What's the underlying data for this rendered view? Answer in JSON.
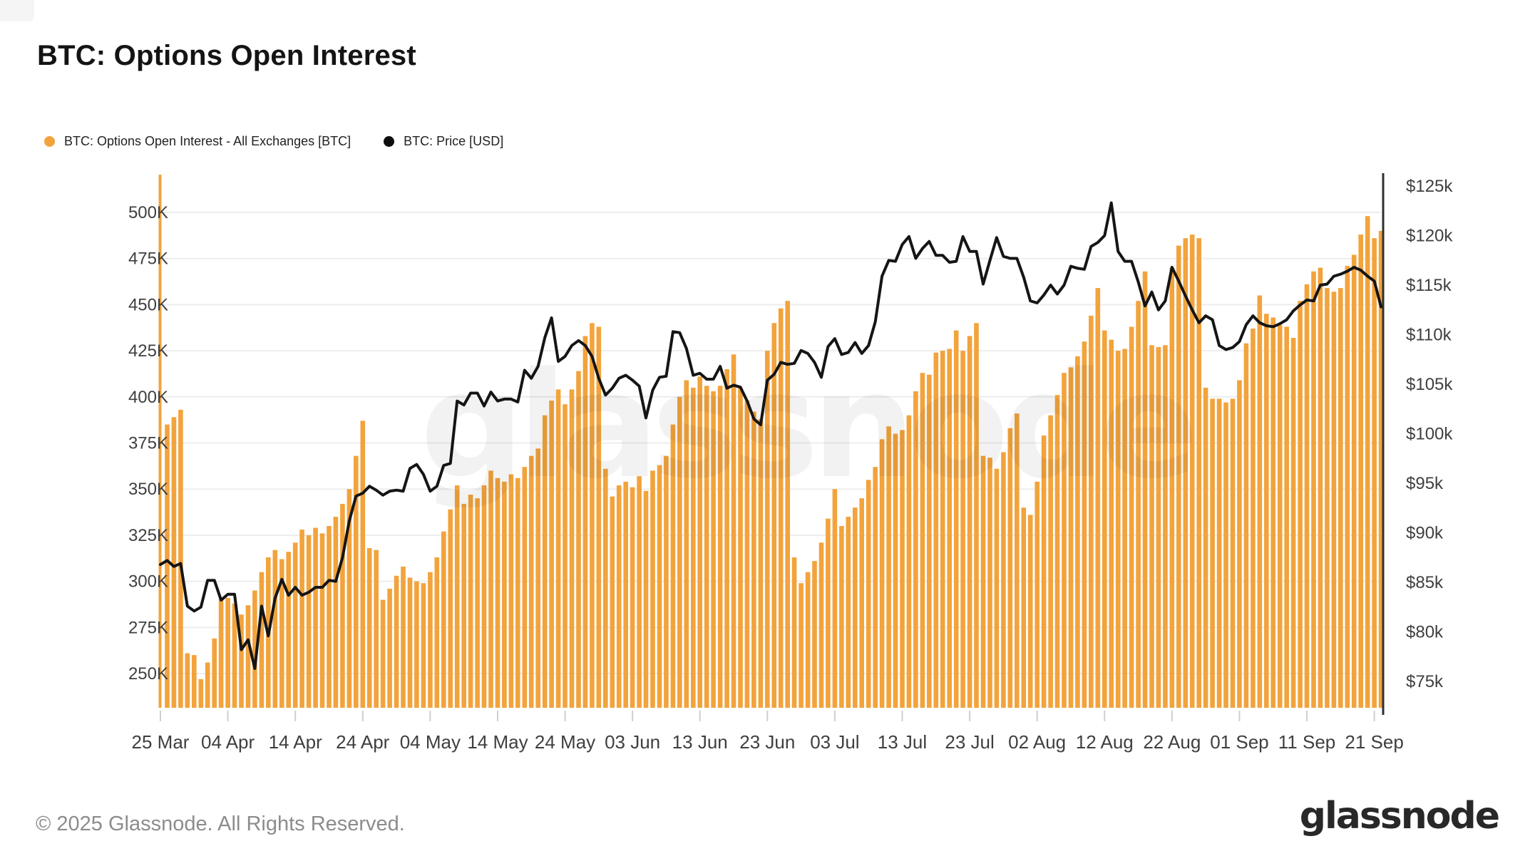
{
  "header": {
    "title": "BTC: Options Open Interest"
  },
  "legend": [
    {
      "label": "BTC: Options Open Interest - All Exchanges [BTC]",
      "color": "#F2A33C",
      "marker": "dot-icon"
    },
    {
      "label": "BTC: Price [USD]",
      "color": "#0E0E0E",
      "marker": "dot-icon"
    }
  ],
  "watermark": "glassnode",
  "footer": {
    "copyright": "© 2025 Glassnode. All Rights Reserved.",
    "logo_text": "glassnode"
  },
  "colors": {
    "bar": "#F2A33C",
    "price_line": "#151515",
    "gridline": "#ededed",
    "axis_text": "#3f3f3f",
    "tick_mark": "#cfcfcf",
    "right_spine": "#2f2f2f",
    "watermark": "rgba(0,0,0,0.05)"
  },
  "chart_data": {
    "type": [
      "bar",
      "line"
    ],
    "title": "BTC: Options Open Interest",
    "x_axis": {
      "start": "25 Mar",
      "end": "22 Sep",
      "interval": "1 day",
      "tick_labels": [
        "25 Mar",
        "04 Apr",
        "14 Apr",
        "24 Apr",
        "04 May",
        "14 May",
        "24 May",
        "03 Jun",
        "13 Jun",
        "23 Jun",
        "03 Jul",
        "13 Jul",
        "23 Jul",
        "02 Aug",
        "12 Aug",
        "22 Aug",
        "01 Sep",
        "11 Sep",
        "21 Sep"
      ],
      "tick_days": [
        0,
        10,
        20,
        30,
        40,
        50,
        60,
        70,
        80,
        90,
        100,
        110,
        120,
        130,
        140,
        150,
        160,
        170,
        180
      ]
    },
    "left_axis": {
      "name": "Options Open Interest [BTC]",
      "tick_labels": [
        "500K",
        "475K",
        "450K",
        "425K",
        "400K",
        "375K",
        "350K",
        "325K",
        "300K",
        "275K",
        "250K"
      ],
      "tick_values": [
        500,
        475,
        450,
        425,
        400,
        375,
        350,
        325,
        300,
        275,
        250
      ],
      "unit": "K BTC",
      "grid": true
    },
    "right_axis": {
      "name": "Price [USD]",
      "tick_labels": [
        "$125k",
        "$120k",
        "$115k",
        "$110k",
        "$105k",
        "$100k",
        "$95k",
        "$90k",
        "$85k",
        "$80k",
        "$75k"
      ],
      "tick_values": [
        125,
        120,
        115,
        110,
        105,
        100,
        95,
        90,
        85,
        80,
        75
      ],
      "unit": "$k",
      "grid": false
    },
    "legend_position": "top-left",
    "series": [
      {
        "name": "BTC: Options Open Interest - All Exchanges [BTC]",
        "type": "bar",
        "unit": "K BTC",
        "color": "#F2A33C",
        "values": [
          521,
          385,
          389,
          393,
          261,
          260,
          247,
          256,
          269,
          291,
          291,
          288,
          282,
          287,
          295,
          305,
          313,
          317,
          312,
          316,
          321,
          328,
          325,
          329,
          326,
          330,
          335,
          342,
          350,
          368,
          387,
          318,
          317,
          290,
          296,
          303,
          308,
          302,
          300,
          299,
          305,
          313,
          327,
          339,
          352,
          342,
          347,
          345,
          352,
          360,
          356,
          354,
          358,
          356,
          362,
          368,
          372,
          390,
          398,
          404,
          396,
          404,
          414,
          433,
          440,
          438,
          361,
          346,
          352,
          354,
          351,
          357,
          349,
          360,
          363,
          368,
          385,
          400,
          409,
          405,
          411,
          406,
          403,
          406,
          415,
          423,
          405,
          398,
          392,
          388,
          425,
          440,
          448,
          452,
          313,
          299,
          305,
          311,
          321,
          334,
          350,
          330,
          335,
          340,
          345,
          355,
          362,
          377,
          384,
          380,
          382,
          390,
          403,
          413,
          412,
          424,
          425,
          426,
          436,
          425,
          433,
          440,
          368,
          367,
          361,
          370,
          383,
          391,
          340,
          336,
          354,
          379,
          390,
          401,
          413,
          416,
          422,
          430,
          444,
          459,
          436,
          431,
          425,
          426,
          438,
          452,
          468,
          428,
          427,
          428,
          470,
          482,
          486,
          488,
          486,
          405,
          399,
          399,
          397,
          399,
          409,
          429,
          437,
          455,
          445,
          443,
          439,
          438,
          432,
          452,
          461,
          468,
          470,
          459,
          457,
          459,
          471,
          477,
          488,
          498,
          486,
          490
        ]
      },
      {
        "name": "BTC: Price [USD]",
        "type": "line",
        "unit": "$k",
        "color": "#151515",
        "values": [
          86.8,
          87.2,
          86.6,
          86.9,
          82.6,
          82.1,
          82.5,
          85.2,
          85.2,
          83.2,
          83.8,
          83.8,
          78.2,
          79.2,
          76.3,
          82.6,
          79.6,
          83.4,
          85.3,
          83.7,
          84.5,
          83.7,
          84.0,
          84.5,
          84.5,
          85.2,
          85.1,
          87.5,
          91.2,
          93.7,
          94.0,
          94.7,
          94.3,
          93.8,
          94.2,
          94.3,
          94.2,
          96.5,
          96.9,
          95.9,
          94.2,
          94.7,
          96.8,
          97.0,
          103.3,
          102.9,
          104.1,
          104.1,
          102.8,
          104.2,
          103.3,
          103.5,
          103.5,
          103.2,
          106.4,
          105.6,
          106.8,
          109.7,
          111.7,
          107.3,
          107.8,
          108.9,
          109.4,
          108.9,
          107.8,
          105.6,
          103.9,
          104.6,
          105.6,
          105.9,
          105.4,
          104.8,
          101.6,
          104.4,
          105.7,
          105.8,
          110.3,
          110.2,
          108.6,
          105.9,
          106.1,
          105.5,
          105.5,
          106.8,
          104.6,
          104.9,
          104.7,
          103.3,
          101.5,
          100.9,
          105.4,
          106.0,
          107.2,
          107.0,
          107.1,
          108.4,
          108.1,
          107.2,
          105.7,
          108.8,
          109.6,
          108.0,
          108.2,
          109.2,
          108.1,
          108.9,
          111.3,
          115.9,
          117.5,
          117.4,
          119.1,
          119.9,
          117.7,
          118.7,
          119.4,
          118.0,
          118.0,
          117.3,
          117.4,
          119.9,
          118.4,
          118.4,
          115.1,
          117.5,
          119.8,
          117.9,
          117.7,
          117.7,
          115.8,
          113.4,
          113.2,
          114.0,
          115.0,
          114.1,
          115.0,
          116.9,
          116.7,
          116.6,
          118.9,
          119.3,
          120.0,
          123.3,
          118.4,
          117.4,
          117.4,
          115.3,
          112.9,
          114.3,
          112.5,
          113.4,
          116.8,
          115.4,
          113.9,
          112.5,
          111.2,
          111.9,
          111.5,
          108.9,
          108.5,
          108.7,
          109.3,
          111.0,
          111.9,
          111.2,
          110.9,
          110.8,
          111.1,
          111.5,
          112.4,
          113.0,
          113.5,
          113.4,
          115.0,
          115.1,
          115.9,
          116.1,
          116.4,
          116.8,
          116.5,
          115.9,
          115.4,
          112.8
        ]
      }
    ],
    "notes": "First bar (25 Mar) is clipped at the top of the plot area."
  }
}
